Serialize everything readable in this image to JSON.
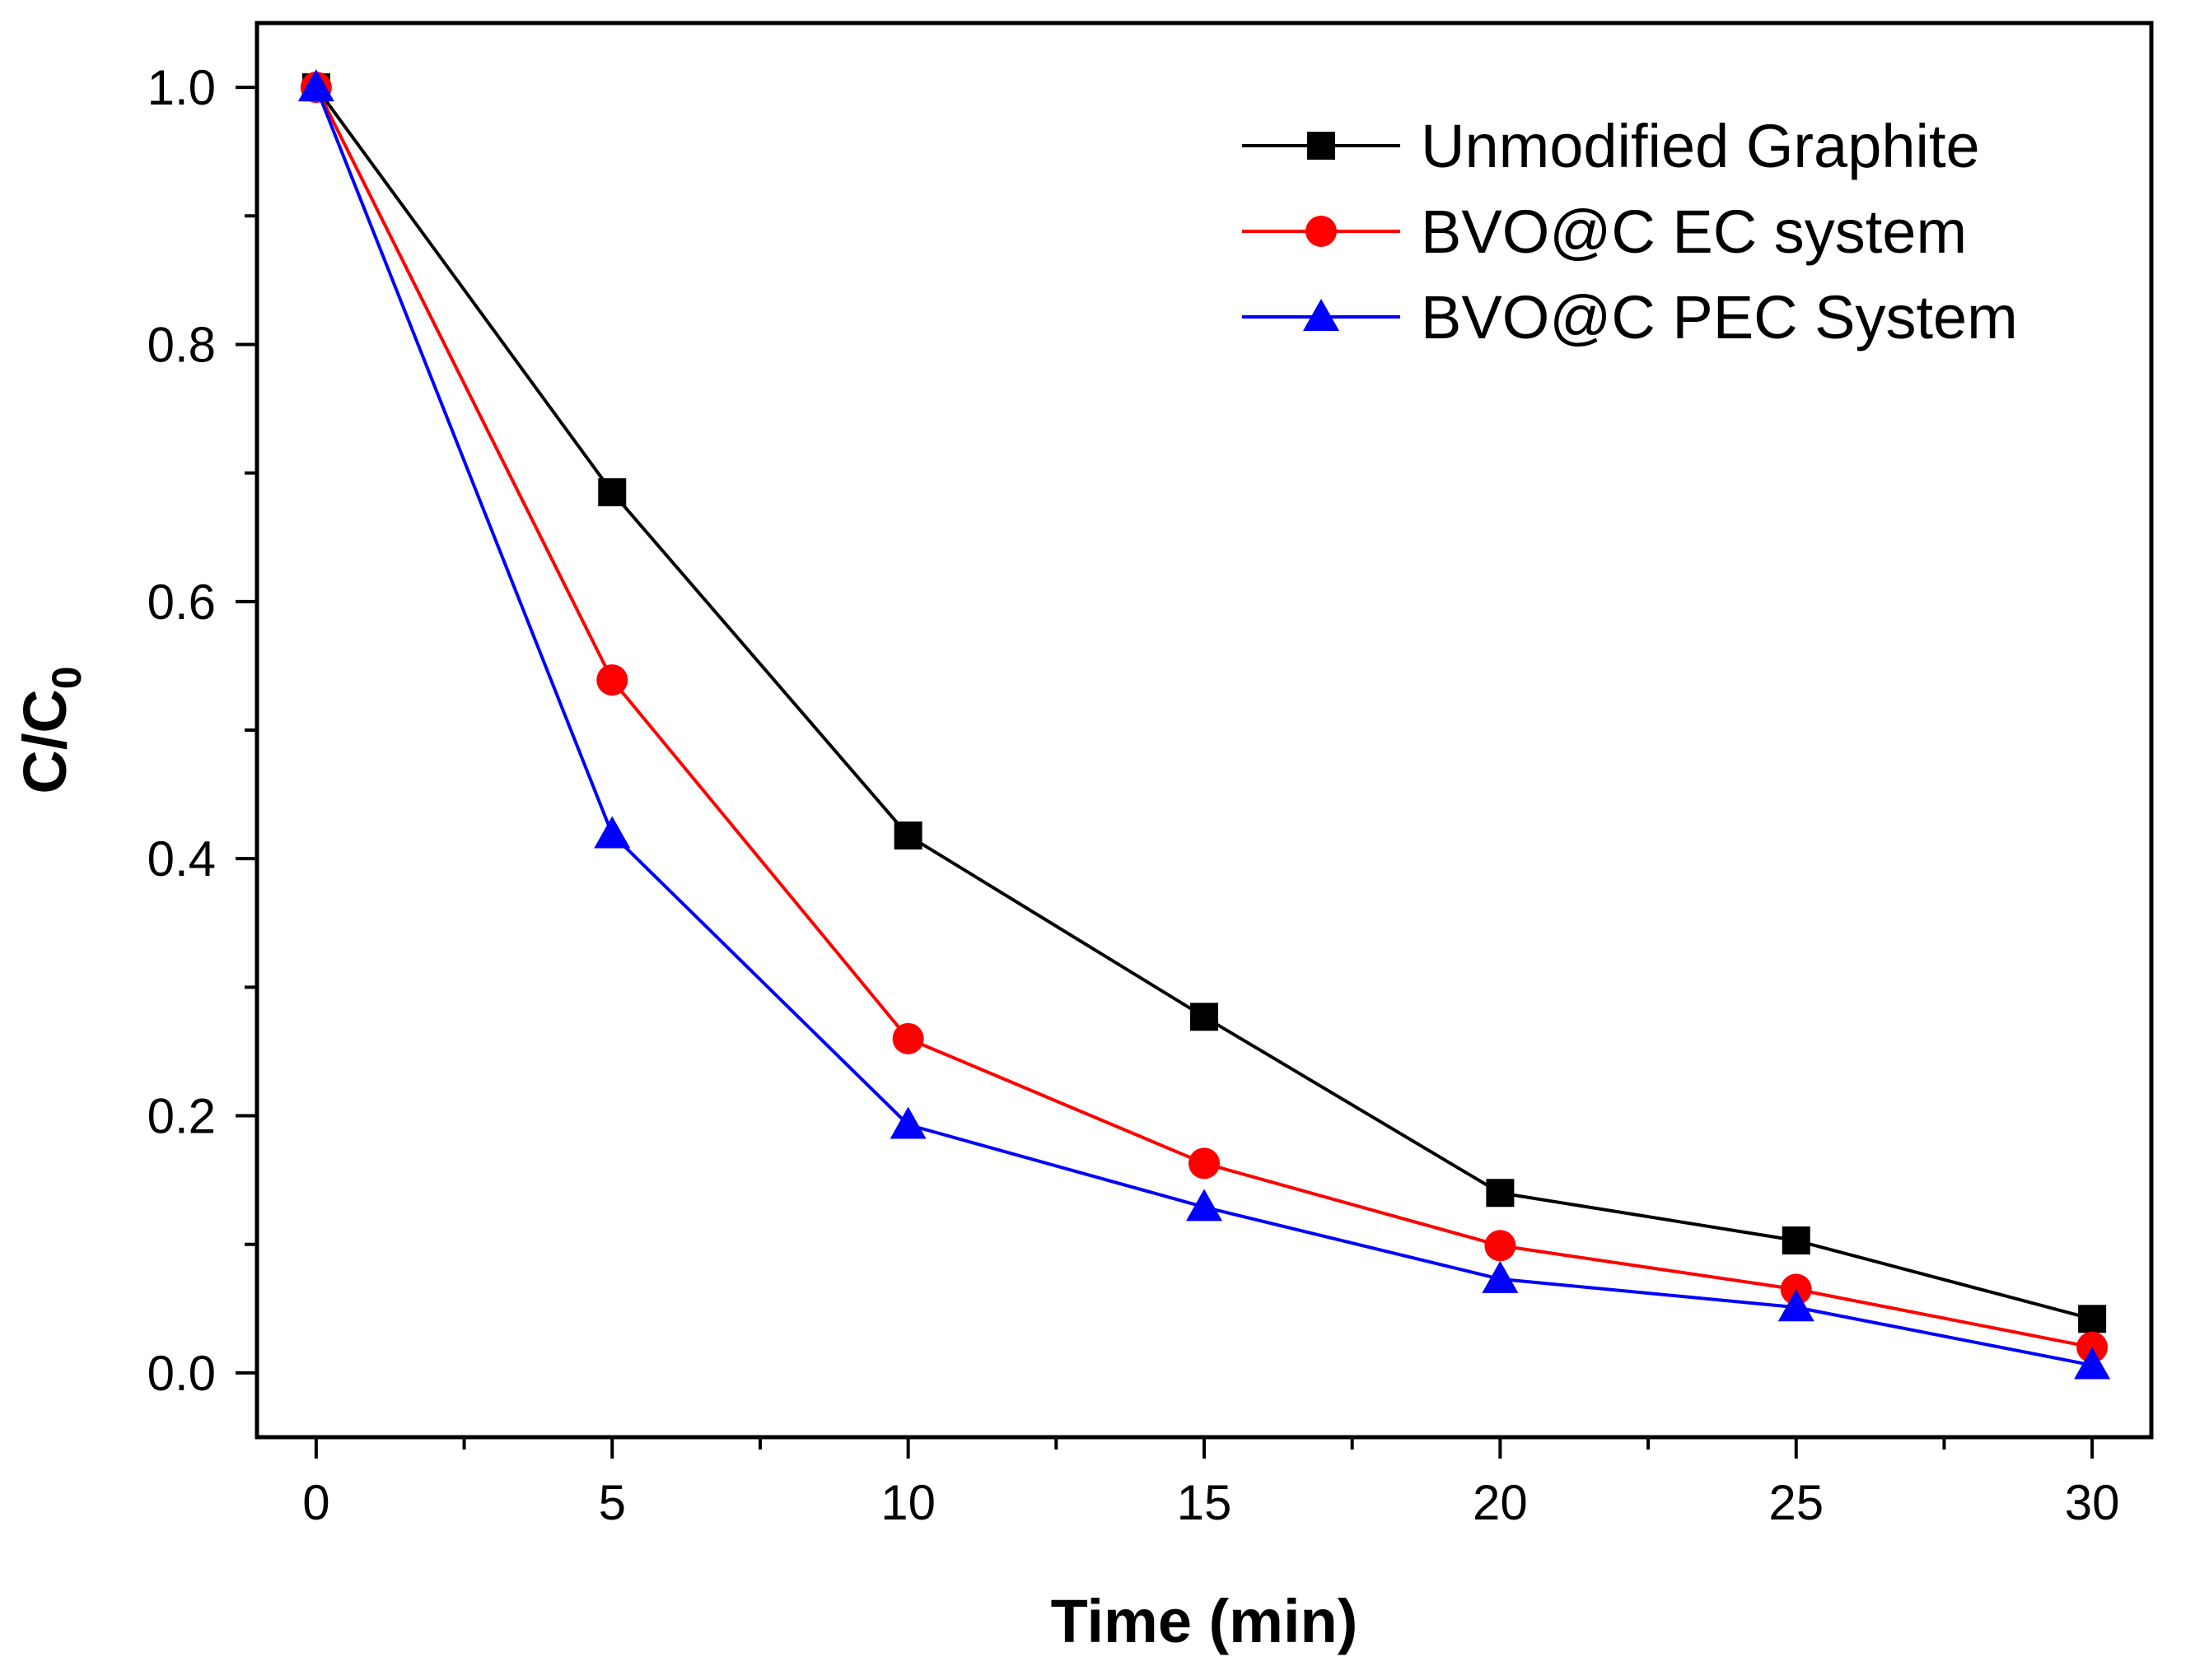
{
  "chart_data": {
    "type": "line",
    "title": "",
    "xlabel": "Time (min)",
    "ylabel_main": "C/C",
    "ylabel_sub": "0",
    "x": [
      0,
      5,
      10,
      15,
      20,
      25,
      30
    ],
    "xlim": [
      -1,
      31
    ],
    "ylim": [
      -0.05,
      1.05
    ],
    "x_ticks": [
      0,
      5,
      10,
      15,
      20,
      25,
      30
    ],
    "x_tick_labels": [
      "0",
      "5",
      "10",
      "15",
      "20",
      "25",
      "30"
    ],
    "y_ticks": [
      0.0,
      0.2,
      0.4,
      0.6,
      0.8,
      1.0
    ],
    "y_tick_labels": [
      "0.0",
      "0.2",
      "0.4",
      "0.6",
      "0.8",
      "1.0"
    ],
    "grid": false,
    "legend_position": "top-right",
    "series": [
      {
        "name": "Unmodified Graphite",
        "color": "#000000",
        "marker": "square",
        "values": [
          1.0,
          0.685,
          0.418,
          0.277,
          0.14,
          0.103,
          0.042
        ]
      },
      {
        "name": "BVO@C EC system",
        "color": "#ff0000",
        "marker": "circle",
        "values": [
          1.0,
          0.539,
          0.26,
          0.163,
          0.099,
          0.065,
          0.02
        ]
      },
      {
        "name": "BVO@C PEC System",
        "color": "#0000ff",
        "marker": "triangle",
        "values": [
          1.0,
          0.419,
          0.193,
          0.129,
          0.073,
          0.051,
          0.006
        ]
      }
    ]
  }
}
